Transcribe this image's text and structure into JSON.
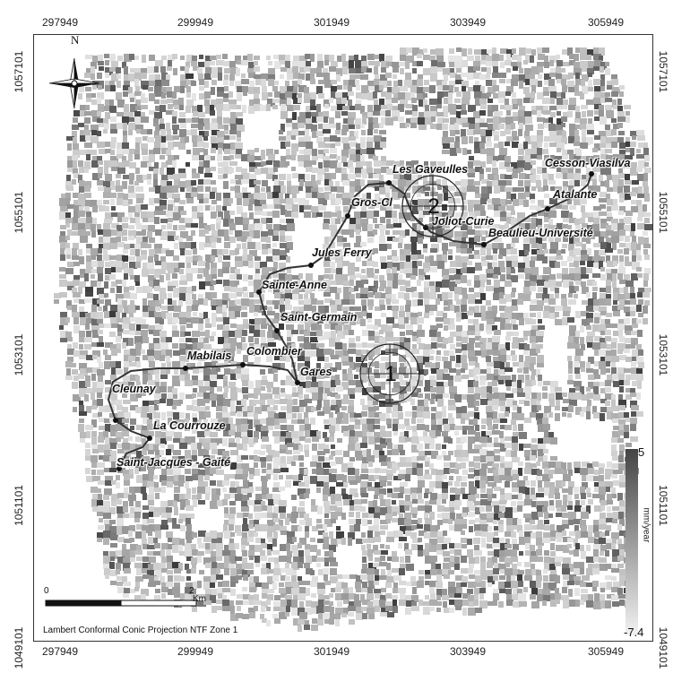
{
  "axes": {
    "x_ticks": [
      "297949",
      "299949",
      "301949",
      "303949",
      "305949"
    ],
    "y_ticks": [
      "1057101",
      "1055101",
      "1053101",
      "1051101",
      "1049101"
    ]
  },
  "north": {
    "label": "N"
  },
  "stations": [
    {
      "name": "Les Gaveulles"
    },
    {
      "name": "Cesson-Viasilva"
    },
    {
      "name": "Gros-Cl"
    },
    {
      "name": "Atalante"
    },
    {
      "name": "Joliot-Curie"
    },
    {
      "name": "Beaulieu-Université"
    },
    {
      "name": "Jules Ferry"
    },
    {
      "name": "Sainte-Anne"
    },
    {
      "name": "Saint-Germain"
    },
    {
      "name": "Mabilais"
    },
    {
      "name": "Colombier"
    },
    {
      "name": "Gares"
    },
    {
      "name": "Cleunay"
    },
    {
      "name": "La Courrouze"
    },
    {
      "name": "Saint-Jacques - Gaité"
    }
  ],
  "markers": [
    {
      "label": "1"
    },
    {
      "label": "2"
    }
  ],
  "legend": {
    "max": "5",
    "min": "-7.4",
    "unit": "mm/year"
  },
  "scale_bar": {
    "start": "0",
    "end": "2",
    "unit": "Km"
  },
  "projection": "Lambert Conformal Conic Projection NTF Zone 1",
  "colors": {
    "line": "#333333",
    "frame": "#333333",
    "legend_top": "#444444",
    "legend_bottom": "#f2f2f2"
  }
}
